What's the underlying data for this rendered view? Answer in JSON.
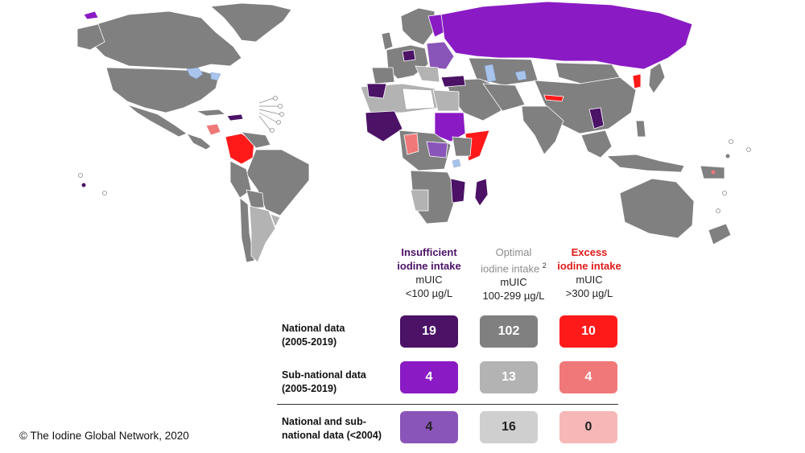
{
  "legend": {
    "columns": [
      {
        "line1": "Insufficient",
        "line2": "iodine intake",
        "line3": "mUIC",
        "line4": "<100 µg/L"
      },
      {
        "line1": "Optimal",
        "line2": "iodine intake",
        "footnote": "2",
        "line3": "mUIC",
        "line4": "100-299 µg/L"
      },
      {
        "line1": "Excess",
        "line2": "iodine intake",
        "line3": "mUIC",
        "line4": ">300 µg/L"
      }
    ],
    "rows": [
      {
        "label_line1": "National data",
        "label_line2": "(2005-2019)",
        "values": [
          "19",
          "102",
          "10"
        ]
      },
      {
        "label_line1": "Sub-national data",
        "label_line2": "(2005-2019)",
        "values": [
          "4",
          "13",
          "4"
        ]
      },
      {
        "label_line1": "National and sub-",
        "label_line2": "national data (<2004)",
        "values": [
          "4",
          "16",
          "0"
        ]
      }
    ],
    "colors": {
      "insufficient": [
        "#4b1266",
        "#8a1bc4",
        "#8a55b8"
      ],
      "optimal": [
        "#808080",
        "#b3b3b3",
        "#cfcfcf"
      ],
      "excess": [
        "#ff1a1a",
        "#f07878",
        "#f6b7b7"
      ]
    }
  },
  "copyright": "© The Iodine Global Network, 2020"
}
